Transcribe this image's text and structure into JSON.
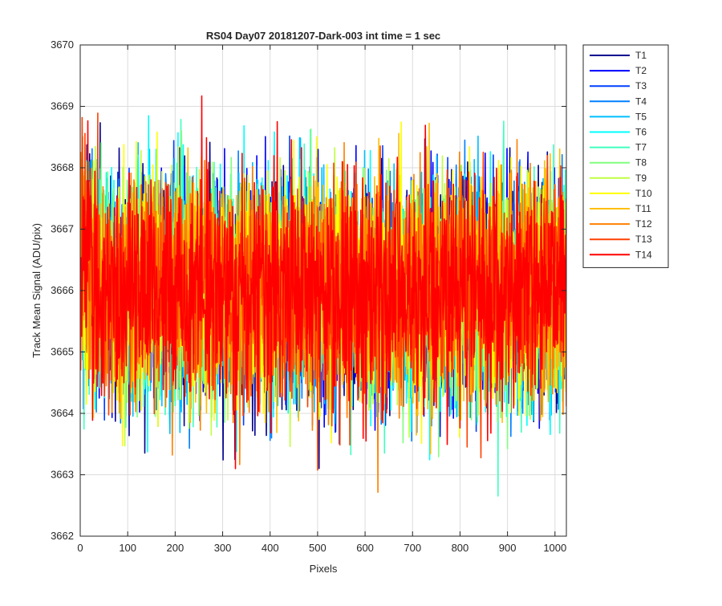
{
  "chart_data": {
    "type": "line",
    "title": "RS04 Day07 20181207-Dark-003 int time = 1 sec",
    "xlabel": "Pixels",
    "ylabel": "Track Mean Signal (ADU/pix)",
    "xlim": [
      0,
      1024
    ],
    "ylim": [
      3662,
      3670
    ],
    "xticks": [
      0,
      100,
      200,
      300,
      400,
      500,
      600,
      700,
      800,
      900,
      1000
    ],
    "yticks": [
      3662,
      3663,
      3664,
      3665,
      3666,
      3667,
      3668,
      3669,
      3670
    ],
    "grid": true,
    "legend_position": "outside-top-right",
    "x_range": [
      1,
      1024
    ],
    "mean_signal": 3666.0,
    "signal_min": 3662.1,
    "signal_max": 3669.9,
    "series": [
      {
        "name": "T1",
        "color": "#00008f"
      },
      {
        "name": "T2",
        "color": "#0000ff"
      },
      {
        "name": "T3",
        "color": "#0040ff"
      },
      {
        "name": "T4",
        "color": "#0080ff"
      },
      {
        "name": "T5",
        "color": "#00bfff"
      },
      {
        "name": "T6",
        "color": "#00ffff"
      },
      {
        "name": "T7",
        "color": "#40ffbf"
      },
      {
        "name": "T8",
        "color": "#80ff80"
      },
      {
        "name": "T9",
        "color": "#bfff40"
      },
      {
        "name": "T10",
        "color": "#ffff00"
      },
      {
        "name": "T11",
        "color": "#ffbf00"
      },
      {
        "name": "T12",
        "color": "#ff8000"
      },
      {
        "name": "T13",
        "color": "#ff4000"
      },
      {
        "name": "T14",
        "color": "#ff0000"
      }
    ]
  }
}
